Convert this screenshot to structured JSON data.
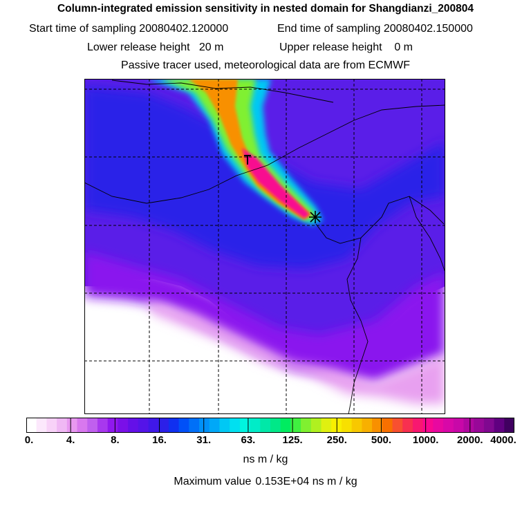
{
  "header": {
    "title": "Column-integrated emission sensitivity in nested domain for Shangdianzi_200804",
    "start_label": "Start time of sampling",
    "start_value": "20080402.120000",
    "end_label": "End time of sampling",
    "end_value": "20080402.150000",
    "lower_label": "Lower release height",
    "lower_value": "20 m",
    "upper_label": "Upper release height",
    "upper_value": "0 m",
    "note": "Passive tracer used, meteorological data are from ECMWF"
  },
  "colors": {
    "background_field": "#5a1ee8",
    "receptor_marker": "#000000"
  },
  "legend": {
    "ticks": [
      "0.",
      "4.",
      "8.",
      "16.",
      "31.",
      "63.",
      "125.",
      "250.",
      "500.",
      "1000.",
      "2000.",
      "4000."
    ],
    "colors": [
      "#ffffff",
      "#fce8fc",
      "#f8d2f8",
      "#f0b8f4",
      "#e898f0",
      "#d878ee",
      "#c060ee",
      "#a838ee",
      "#9018ee",
      "#7a10e8",
      "#6410e8",
      "#5414e8",
      "#4018e8",
      "#2c20e8",
      "#1030f0",
      "#0050f8",
      "#0070f8",
      "#0090f8",
      "#00a8f8",
      "#00c8f4",
      "#00e0f0",
      "#00f4e0",
      "#00ecc8",
      "#00e8a8",
      "#00e888",
      "#00ec60",
      "#40f040",
      "#80f030",
      "#b0f020",
      "#e0f010",
      "#f8f000",
      "#f8e000",
      "#f8c800",
      "#f8b000",
      "#f89000",
      "#f87000",
      "#f85030",
      "#f83050",
      "#f81870",
      "#f80890",
      "#e808a0",
      "#d808a8",
      "#c808a8",
      "#b008a0",
      "#980898",
      "#800890",
      "#600080",
      "#400060"
    ],
    "units": "ns m / kg",
    "max_label": "Maximum value",
    "max_value": "0.153E+04 ns m / kg"
  }
}
